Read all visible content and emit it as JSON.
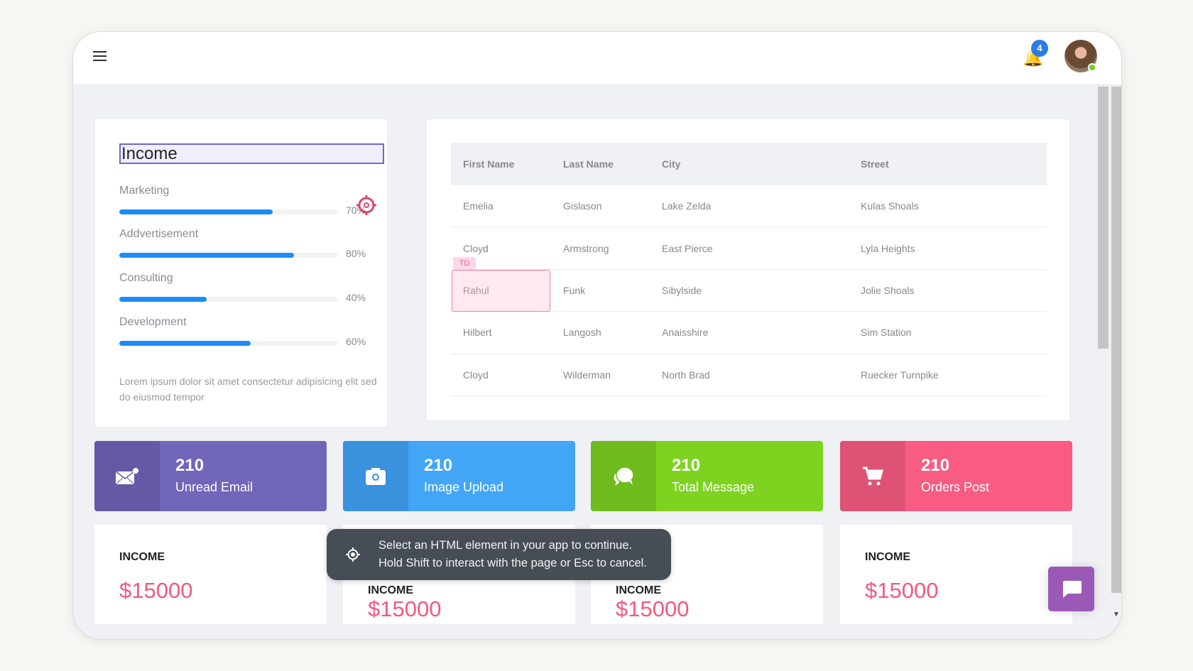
{
  "header": {
    "menu_icon": "hamburger-icon",
    "notifications": {
      "icon": "bell-icon",
      "count": "4"
    },
    "avatar": {
      "status": "online",
      "status_color": "#6cd12a"
    }
  },
  "income_card": {
    "title": "Income",
    "progress": [
      {
        "label": "Marketing",
        "value": 70,
        "text": "70%"
      },
      {
        "label": "Addvertisement",
        "value": 80,
        "text": "80%"
      },
      {
        "label": "Consulting",
        "value": 40,
        "text": "40%"
      },
      {
        "label": "Development",
        "value": 60,
        "text": "60%"
      }
    ],
    "description": "Lorem ipsum dolor sit amet consectetur adipisicing elit sed do eiusmod tempor",
    "bar_color": "#1e8cf7"
  },
  "table": {
    "columns": [
      "First Name",
      "Last Name",
      "City",
      "Street"
    ],
    "rows": [
      [
        "Emelia",
        "Gislason",
        "Lake Zelda",
        "Kulas Shoals"
      ],
      [
        "Cloyd",
        "Armstrong",
        "East Pierce",
        "Lyla Heights"
      ],
      [
        "Rahul",
        "Funk",
        "Sibylside",
        "Jolie Shoals"
      ],
      [
        "Hilbert",
        "Langosh",
        "Anaisshire",
        "Sim Station"
      ],
      [
        "Cloyd",
        "Wilderman",
        "North Brad",
        "Ruecker Turnpike"
      ]
    ],
    "highlight_tag": "TD"
  },
  "stats": [
    {
      "value": "210",
      "label": "Unread Email",
      "icon": "envelope-icon",
      "color": "#7066ba",
      "icon_bg": "#6559a6"
    },
    {
      "value": "210",
      "label": "Image Upload",
      "icon": "camera-icon",
      "color": "#42a5f5",
      "icon_bg": "#3a91dc"
    },
    {
      "value": "210",
      "label": "Total Message",
      "icon": "chat-bubbles-icon",
      "color": "#7ed321",
      "icon_bg": "#70bb1e"
    },
    {
      "value": "210",
      "label": "Orders Post",
      "icon": "cart-icon",
      "color": "#f85c82",
      "icon_bg": "#de5275"
    }
  ],
  "income_tiles": [
    {
      "label": "INCOME",
      "value": "$15000"
    },
    {
      "label": "INCOME",
      "value": "$15000"
    },
    {
      "label": "INCOME",
      "value": "$15000"
    },
    {
      "label": "INCOME",
      "value": "$15000"
    }
  ],
  "tooltip": {
    "line1": "Select an HTML element in your app to continue.",
    "line2": "Hold Shift to interact with the page or Esc to cancel."
  },
  "chat_button": {
    "icon": "chat-icon",
    "color": "#9b59b6"
  }
}
